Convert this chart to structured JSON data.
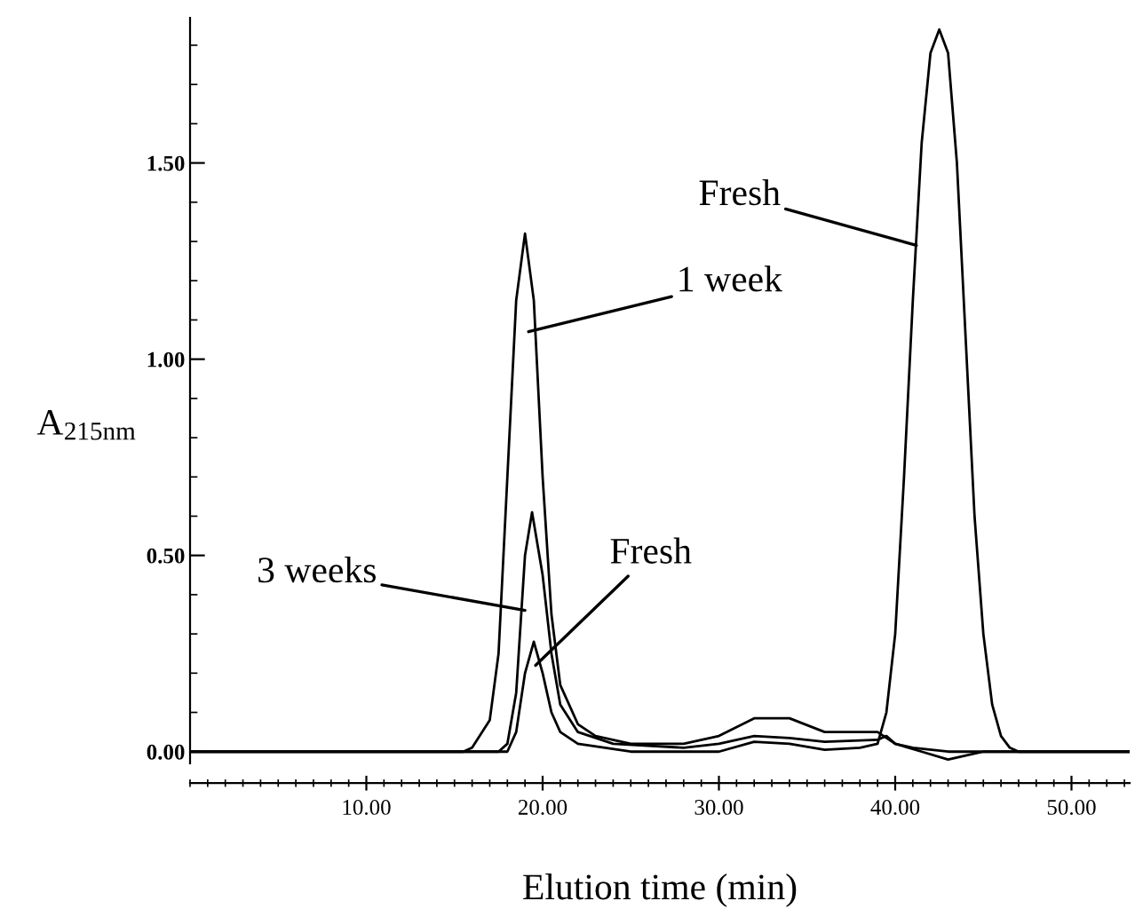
{
  "chart_data": {
    "type": "line",
    "xlabel": "Elution time (min)",
    "ylabel": "A$_{215nm}$",
    "xlim": [
      0,
      53.3
    ],
    "ylim": [
      -0.03,
      1.87
    ],
    "xticks": [
      {
        "value": 10,
        "label": "10.00"
      },
      {
        "value": 20,
        "label": "20.00"
      },
      {
        "value": 30,
        "label": "30.00"
      },
      {
        "value": 40,
        "label": "40.00"
      },
      {
        "value": 50,
        "label": "50.00"
      }
    ],
    "yticks": [
      {
        "value": 0,
        "label": "0.00"
      },
      {
        "value": 0.5,
        "label": "0.50"
      },
      {
        "value": 1,
        "label": "1.00"
      },
      {
        "value": 1.5,
        "label": "1.50"
      }
    ],
    "grid": false,
    "legend": false,
    "marker": "none",
    "line_style": "solid",
    "series": [
      {
        "color": "#000000",
        "x": [
          0,
          15.5,
          16,
          17,
          17.5,
          18,
          18.5,
          19,
          19.5,
          20,
          20.5,
          21,
          22,
          23,
          25,
          28,
          30,
          32,
          34,
          36,
          39,
          40,
          41,
          43,
          53.3
        ],
        "values": [
          0,
          0,
          0.01,
          0.08,
          0.25,
          0.7,
          1.15,
          1.32,
          1.15,
          0.7,
          0.35,
          0.17,
          0.07,
          0.04,
          0.02,
          0.02,
          0.04,
          0.085,
          0.085,
          0.05,
          0.05,
          0.02,
          0.01,
          0,
          0
        ]
      },
      {
        "color": "#000000",
        "x": [
          0,
          17.5,
          18,
          18.5,
          19,
          19.4,
          20,
          20.5,
          21,
          22,
          24,
          28,
          30,
          32,
          34,
          36,
          39,
          39.5,
          40,
          41.5,
          43,
          44,
          45,
          53.3
        ],
        "values": [
          0,
          0,
          0.02,
          0.15,
          0.5,
          0.61,
          0.45,
          0.25,
          0.12,
          0.05,
          0.02,
          0.01,
          0.02,
          0.04,
          0.035,
          0.025,
          0.03,
          0.04,
          0.02,
          0,
          -0.02,
          -0.01,
          0,
          0
        ]
      },
      {
        "color": "#000000",
        "x": [
          0,
          18,
          18.5,
          19,
          19.5,
          20,
          20.5,
          21,
          22,
          25,
          30,
          32,
          34,
          36,
          38,
          39,
          39.5,
          40,
          40.5,
          41,
          41.5,
          42,
          42.5,
          43,
          43.5,
          44,
          44.5,
          45,
          45.5,
          46,
          46.5,
          47,
          53.3
        ],
        "values": [
          0,
          0,
          0.05,
          0.2,
          0.28,
          0.2,
          0.1,
          0.05,
          0.02,
          0,
          0,
          0.025,
          0.02,
          0.005,
          0.01,
          0.02,
          0.1,
          0.3,
          0.7,
          1.15,
          1.55,
          1.78,
          1.84,
          1.78,
          1.5,
          1.05,
          0.6,
          0.3,
          0.12,
          0.04,
          0.01,
          0,
          0
        ]
      }
    ],
    "annotations": [
      {
        "text": "1 week",
        "x": 19.2,
        "y": 1.07
      },
      {
        "text": "3 weeks",
        "x": 19.0,
        "y": 0.36
      },
      {
        "text": "Fresh",
        "x": 19.6,
        "y": 0.22
      },
      {
        "text": "Fresh",
        "x": 41.2,
        "y": 1.29
      }
    ]
  }
}
